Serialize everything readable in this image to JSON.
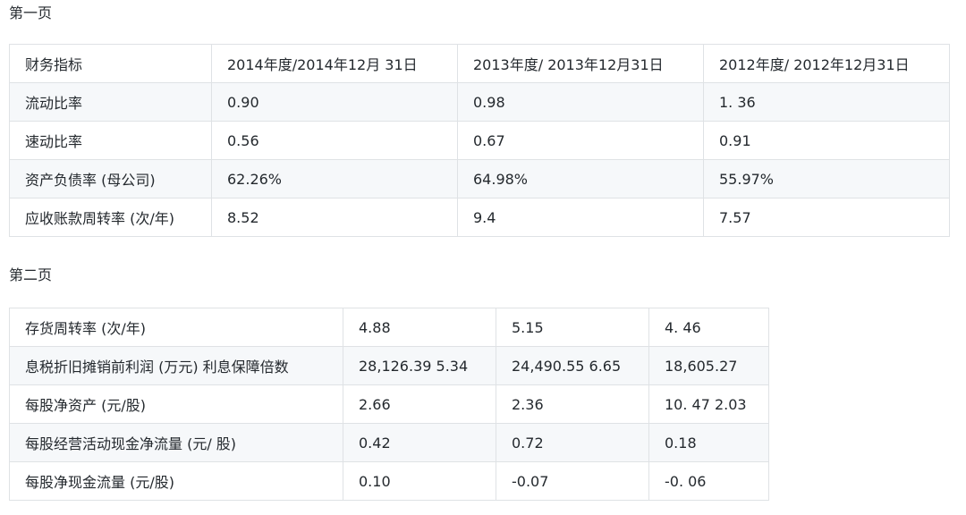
{
  "page1": {
    "title": "第一页",
    "rows": [
      [
        "财务指标",
        "2014年度/2014年12月 31日",
        "2013年度/ 2013年12月31日",
        "2012年度/ 2012年12月31日"
      ],
      [
        "流动比率",
        "0.90",
        "0.98",
        "1. 36"
      ],
      [
        "速动比率",
        "0.56",
        "0.67",
        "0.91"
      ],
      [
        "资产负债率 (母公司)",
        "62.26%",
        "64.98%",
        "55.97%"
      ],
      [
        "应收账款周转率 (次/年)",
        "8.52",
        "9.4",
        "7.57"
      ]
    ]
  },
  "page2": {
    "title": "第二页",
    "rows": [
      [
        "存货周转率 (次/年)",
        "4.88",
        "5.15",
        "4. 46"
      ],
      [
        "息税折旧摊销前利润 (万元) 利息保障倍数",
        "28,126.39 5.34",
        "24,490.55 6.65",
        "18,605.27"
      ],
      [
        "每股净资产 (元/股)",
        "2.66",
        "2.36",
        "10. 47 2.03"
      ],
      [
        "每股经营活动现金净流量 (元/ 股)",
        "0.42",
        "0.72",
        "0.18"
      ],
      [
        "每股净现金流量 (元/股)",
        "0.10",
        "-0.07",
        "-0. 06"
      ]
    ]
  }
}
